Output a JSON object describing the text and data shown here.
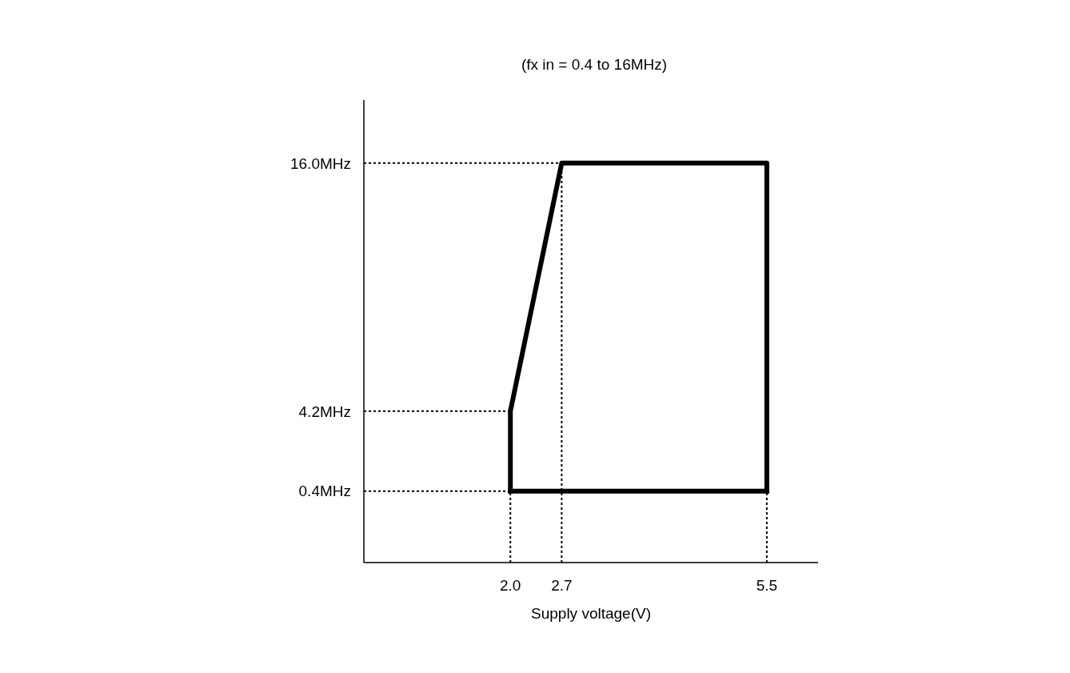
{
  "chart_data": {
    "type": "line",
    "title": "(fx in = 0.4 to 16MHz)",
    "xlabel": "Supply voltage(V)",
    "series": [
      {
        "color": "#000000",
        "line_style": "dotted",
        "x": [
          0,
          2.7
        ],
        "values": [
          16.0,
          16.0
        ]
      },
      {
        "color": "#000000",
        "line_style": "dotted",
        "x": [
          0,
          2.0
        ],
        "values": [
          4.2,
          4.2
        ]
      },
      {
        "color": "#000000",
        "line_style": "dotted",
        "x": [
          0,
          2.0
        ],
        "values": [
          0.4,
          0.4
        ]
      },
      {
        "color": "#000000",
        "line_style": "dotted",
        "x": [
          2.0,
          2.0
        ],
        "values": [
          -3,
          0.4
        ]
      },
      {
        "color": "#000000",
        "line_style": "dotted",
        "x": [
          2.7,
          2.7
        ],
        "values": [
          -3,
          16.0
        ]
      },
      {
        "color": "#000000",
        "line_style": "dotted",
        "x": [
          5.5,
          5.5
        ],
        "values": [
          -3,
          0.4
        ]
      },
      {
        "color": "#000000",
        "x": [
          2.0,
          2.0,
          2.7,
          5.5,
          5.5
        ],
        "values": [
          0.4,
          4.2,
          16.0,
          16.0,
          0.4
        ]
      },
      {
        "color": "#000000",
        "x": [
          2.0,
          5.5
        ],
        "values": [
          0.4,
          0.4
        ]
      }
    ],
    "xlim": [
      0,
      6.2
    ],
    "ylim": [
      -3,
      19
    ],
    "xticks": [
      {
        "value": 2.0,
        "label": "2.0"
      },
      {
        "value": 2.7,
        "label": "2.7"
      },
      {
        "value": 5.5,
        "label": "5.5"
      }
    ],
    "yticks": [
      {
        "value": 0.4,
        "label": "0.4MHz"
      },
      {
        "value": 4.2,
        "label": "4.2MHz"
      },
      {
        "value": 16.0,
        "label": "16.0MHz"
      }
    ],
    "grid": false,
    "marker": "none",
    "line_style": "solid"
  }
}
